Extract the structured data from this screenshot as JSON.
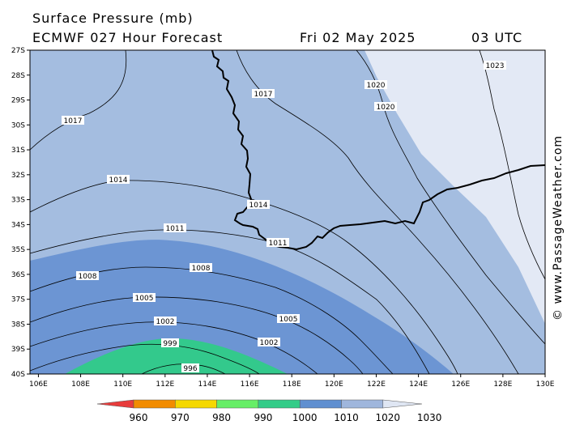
{
  "header": {
    "title": "Surface Pressure (mb)",
    "model": "ECMWF 027 Hour Forecast",
    "date": "Fri 02 May 2025",
    "time": "03 UTC"
  },
  "credit": "© www.PassageWeather.com",
  "axes": {
    "lat_labels": [
      "27S",
      "28S",
      "29S",
      "30S",
      "31S",
      "32S",
      "33S",
      "34S",
      "35S",
      "36S",
      "37S",
      "38S",
      "39S",
      "40S"
    ],
    "lon_labels": [
      "106E",
      "108E",
      "110E",
      "112E",
      "114E",
      "116E",
      "118E",
      "120E",
      "122E",
      "124E",
      "126E",
      "128E",
      "130E"
    ]
  },
  "isobars": {
    "labels": [
      "1023",
      "1020",
      "1020",
      "1017",
      "1017",
      "1014",
      "1014",
      "1011",
      "1011",
      "1008",
      "1008",
      "1005",
      "1005",
      "1002",
      "1002",
      "999",
      "996"
    ]
  },
  "legend": {
    "values": [
      "960",
      "970",
      "980",
      "990",
      "1000",
      "1010",
      "1020",
      "1030"
    ],
    "colors": [
      "#e83c3c",
      "#f28c00",
      "#f5d800",
      "#66ee66",
      "#33cc88",
      "#5f8fd0",
      "#9fb6dc",
      "#dfe6f3"
    ]
  },
  "fill_colors": {
    "band_1020_1030": "#e3e9f5",
    "band_1010_1020": "#a4bde0",
    "band_1000_1010": "#6c95d3",
    "band_990_1000": "#33c98c"
  }
}
